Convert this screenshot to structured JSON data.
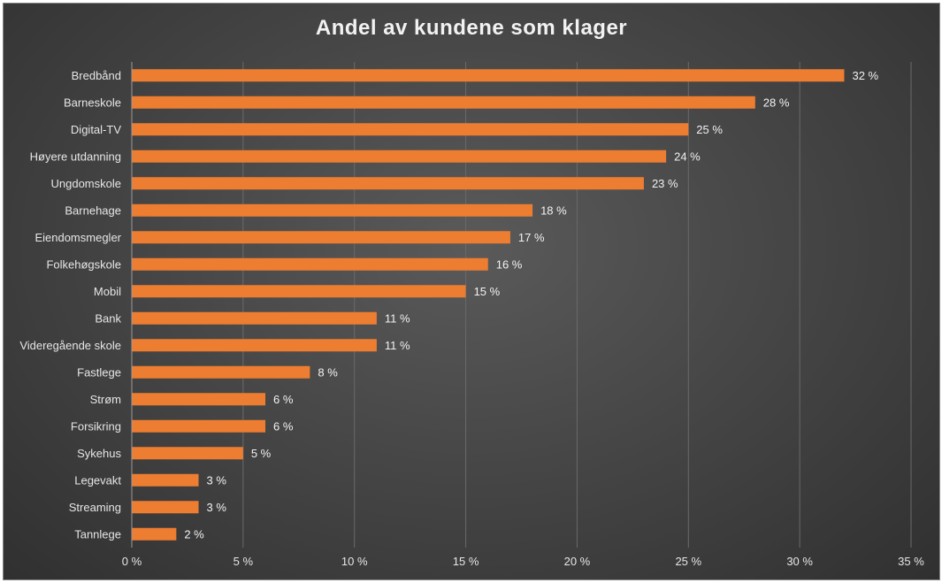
{
  "chart_data": {
    "type": "bar",
    "orientation": "horizontal",
    "title": "Andel av kundene som klager",
    "xlabel": "",
    "ylabel": "",
    "categories": [
      "Bredbånd",
      "Barneskole",
      "Digital-TV",
      "Høyere utdanning",
      "Ungdomskole",
      "Barnehage",
      "Eiendomsmegler",
      "Folkehøgskole",
      "Mobil",
      "Bank",
      "Videregående skole",
      "Fastlege",
      "Strøm",
      "Forsikring",
      "Sykehus",
      "Legevakt",
      "Streaming",
      "Tannlege"
    ],
    "values": [
      32,
      28,
      25,
      24,
      23,
      18,
      17,
      16,
      15,
      11,
      11,
      8,
      6,
      6,
      5,
      3,
      3,
      2
    ],
    "value_labels": [
      "32 %",
      "28 %",
      "25 %",
      "24 %",
      "23 %",
      "18 %",
      "17 %",
      "16 %",
      "15 %",
      "11 %",
      "11 %",
      "8 %",
      "6 %",
      "6 %",
      "5 %",
      "3 %",
      "3 %",
      "2 %"
    ],
    "xlim": [
      0,
      35
    ],
    "x_ticks": [
      0,
      5,
      10,
      15,
      20,
      25,
      30,
      35
    ],
    "x_tick_labels": [
      "0 %",
      "5 %",
      "10 %",
      "15 %",
      "20 %",
      "25 %",
      "30 %",
      "35 %"
    ],
    "grid": "vertical",
    "legend": "none",
    "colors": {
      "bar": "#ed7d31",
      "background": "#404040",
      "gridline": "#6a6a6a",
      "text": "#e6e6e6"
    }
  }
}
